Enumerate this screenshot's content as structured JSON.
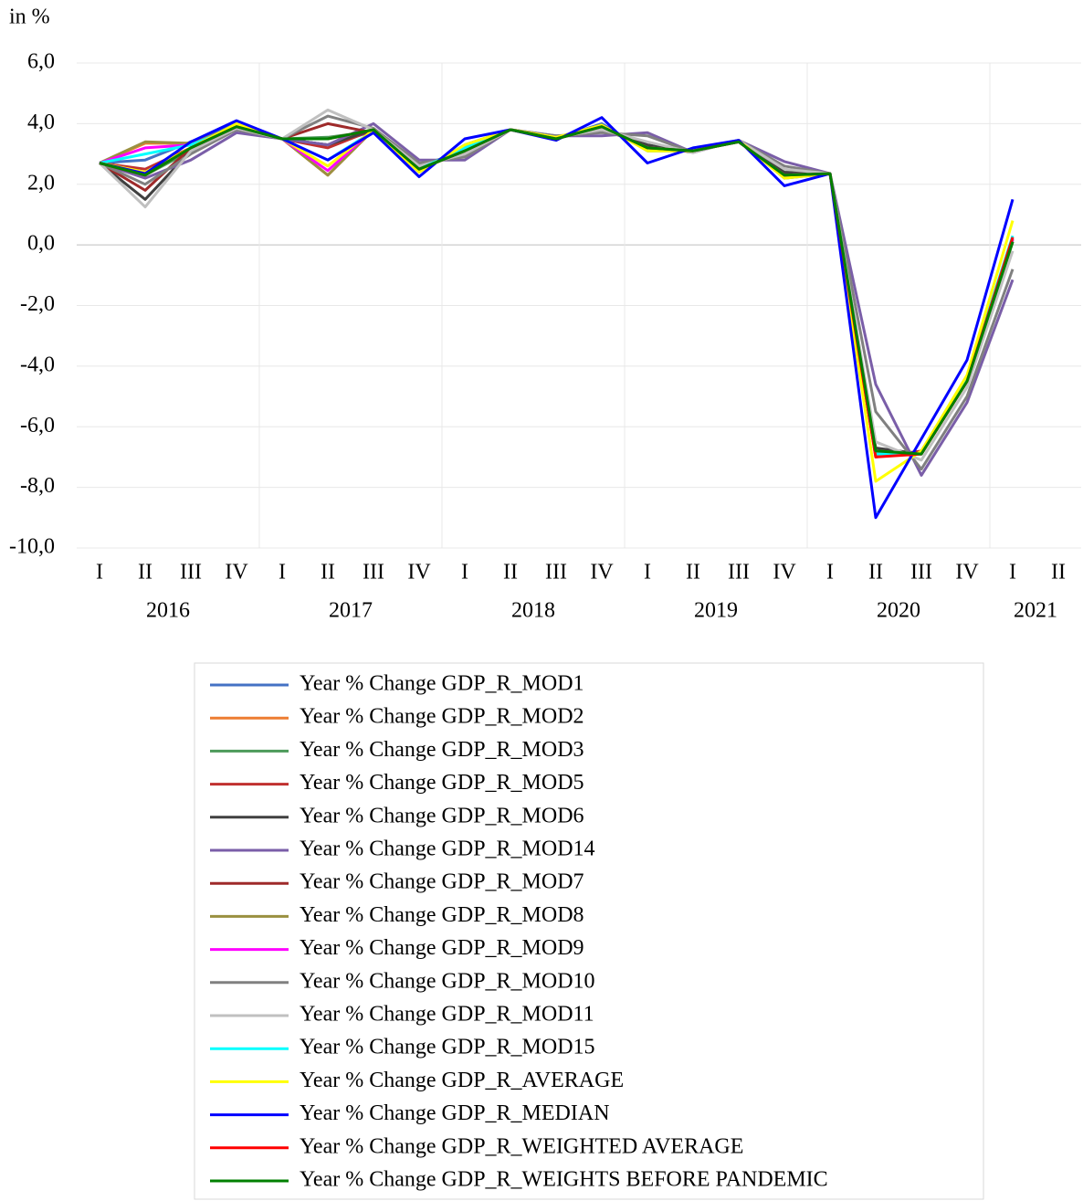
{
  "chart_data": {
    "type": "line",
    "y_axis_label": "in %",
    "categories": [
      "I",
      "II",
      "III",
      "IV",
      "I",
      "II",
      "III",
      "IV",
      "I",
      "II",
      "III",
      "IV",
      "I",
      "II",
      "III",
      "IV",
      "I",
      "II",
      "III",
      "IV",
      "I",
      "II"
    ],
    "year_labels": [
      "2016",
      "2017",
      "2018",
      "2019",
      "2020",
      "2021"
    ],
    "ylim": [
      -10,
      6
    ],
    "yticks": [
      {
        "value": -10,
        "label": "-10,0"
      },
      {
        "value": -8,
        "label": "-8,0"
      },
      {
        "value": -6,
        "label": "-6,0"
      },
      {
        "value": -4,
        "label": "-4,0"
      },
      {
        "value": -2,
        "label": "-2,0"
      },
      {
        "value": 0,
        "label": "0,0"
      },
      {
        "value": 2,
        "label": "2,0"
      },
      {
        "value": 4,
        "label": "4,0"
      },
      {
        "value": 6,
        "label": "6,0"
      }
    ],
    "grid": true,
    "series": [
      {
        "name": "Year % Change GDP_R_MOD1",
        "color": "#4472c4",
        "values": [
          2.7,
          2.8,
          3.4,
          4.0,
          3.5,
          3.3,
          3.75,
          2.4,
          3.3,
          3.8,
          3.5,
          4.0,
          3.1,
          3.1,
          3.45,
          2.2,
          2.35,
          -6.9,
          -6.9,
          -4.4,
          0.2,
          null
        ]
      },
      {
        "name": "Year % Change GDP_R_MOD2",
        "color": "#ed7d31",
        "values": [
          2.7,
          3.35,
          3.35,
          3.9,
          3.5,
          2.3,
          3.8,
          2.5,
          3.2,
          3.8,
          3.55,
          3.9,
          3.2,
          3.1,
          3.4,
          2.3,
          2.35,
          -6.8,
          -6.9,
          -4.5,
          0.2,
          null
        ]
      },
      {
        "name": "Year % Change GDP_R_MOD3",
        "color": "#4c9a5a",
        "values": [
          2.7,
          2.3,
          3.1,
          3.9,
          3.5,
          3.55,
          3.75,
          2.6,
          3.1,
          3.8,
          3.55,
          3.9,
          3.25,
          3.1,
          3.45,
          2.35,
          2.35,
          -6.8,
          -6.9,
          -4.5,
          0.15,
          null
        ]
      },
      {
        "name": "Year % Change GDP_R_MOD5",
        "color": "#c0302f",
        "values": [
          2.7,
          2.5,
          3.2,
          3.9,
          3.5,
          3.2,
          3.8,
          2.5,
          3.2,
          3.8,
          3.5,
          3.9,
          3.2,
          3.1,
          3.4,
          2.3,
          2.35,
          -7.0,
          -6.8,
          -4.4,
          0.25,
          null
        ]
      },
      {
        "name": "Year % Change GDP_R_MOD6",
        "color": "#404040",
        "values": [
          2.7,
          1.5,
          3.1,
          3.8,
          3.5,
          3.3,
          3.8,
          2.6,
          3.0,
          3.8,
          3.55,
          3.8,
          3.3,
          3.05,
          3.45,
          2.4,
          2.35,
          -6.7,
          -6.9,
          -4.5,
          0.1,
          null
        ]
      },
      {
        "name": "Year % Change GDP_R_MOD14",
        "color": "#7a5ea8",
        "values": [
          2.7,
          2.2,
          2.8,
          3.7,
          3.5,
          3.3,
          4.0,
          2.8,
          2.8,
          3.8,
          3.6,
          3.6,
          3.7,
          3.05,
          3.45,
          2.75,
          2.35,
          -4.6,
          -7.6,
          -5.2,
          -1.15,
          null
        ]
      },
      {
        "name": "Year % Change GDP_R_MOD7",
        "color": "#9e2a2a",
        "values": [
          2.7,
          1.8,
          3.2,
          3.9,
          3.5,
          4.0,
          3.7,
          2.5,
          3.1,
          3.8,
          3.5,
          3.9,
          3.2,
          3.1,
          3.4,
          2.3,
          2.35,
          -6.9,
          -6.9,
          -4.5,
          0.2,
          null
        ]
      },
      {
        "name": "Year % Change GDP_R_MOD8",
        "color": "#9a9040",
        "values": [
          2.7,
          3.4,
          3.35,
          3.9,
          3.5,
          2.3,
          3.8,
          2.5,
          3.1,
          3.8,
          3.5,
          3.9,
          3.2,
          3.1,
          3.4,
          2.3,
          2.35,
          -6.8,
          -6.9,
          -4.5,
          0.1,
          null
        ]
      },
      {
        "name": "Year % Change GDP_R_MOD9",
        "color": "#ff00ff",
        "values": [
          2.7,
          3.2,
          3.3,
          3.9,
          3.5,
          2.45,
          3.8,
          2.5,
          3.2,
          3.8,
          3.5,
          3.9,
          3.2,
          3.1,
          3.4,
          2.3,
          2.35,
          -6.9,
          -6.9,
          -4.4,
          0.2,
          null
        ]
      },
      {
        "name": "Year % Change GDP_R_MOD10",
        "color": "#808080",
        "values": [
          2.7,
          2.0,
          3.0,
          3.8,
          3.5,
          4.25,
          3.85,
          2.7,
          2.9,
          3.8,
          3.6,
          3.7,
          3.6,
          3.05,
          3.45,
          2.6,
          2.35,
          -5.5,
          -7.4,
          -5.0,
          -0.8,
          null
        ]
      },
      {
        "name": "Year % Change GDP_R_MOD11",
        "color": "#c0c0c0",
        "values": [
          2.7,
          1.25,
          3.1,
          3.85,
          3.5,
          4.45,
          3.8,
          2.6,
          3.0,
          3.8,
          3.55,
          3.8,
          3.4,
          3.05,
          3.45,
          2.5,
          2.35,
          -6.5,
          -7.1,
          -4.7,
          -0.2,
          null
        ]
      },
      {
        "name": "Year % Change GDP_R_MOD15",
        "color": "#00ffff",
        "values": [
          2.7,
          3.0,
          3.3,
          3.9,
          3.5,
          2.8,
          3.75,
          2.5,
          3.2,
          3.8,
          3.5,
          3.9,
          3.2,
          3.1,
          3.4,
          2.3,
          2.35,
          -6.9,
          -6.9,
          -4.4,
          0.3,
          null
        ]
      },
      {
        "name": "Year % Change GDP_R_AVERAGE",
        "color": "#ffff00",
        "values": [
          2.7,
          2.4,
          3.2,
          4.0,
          3.5,
          2.6,
          3.8,
          2.4,
          3.3,
          3.8,
          3.55,
          3.95,
          3.1,
          3.1,
          3.45,
          2.2,
          2.35,
          -7.8,
          -6.8,
          -4.3,
          0.8,
          null
        ]
      },
      {
        "name": "Year % Change GDP_R_MEDIAN",
        "color": "#0000ff",
        "values": [
          2.7,
          2.35,
          3.4,
          4.1,
          3.5,
          2.8,
          3.7,
          2.25,
          3.5,
          3.8,
          3.45,
          4.2,
          2.7,
          3.2,
          3.45,
          1.95,
          2.35,
          -9.0,
          -6.4,
          -3.8,
          1.5,
          null
        ]
      },
      {
        "name": "Year % Change GDP_R_WEIGHTED AVERAGE",
        "color": "#ff0000",
        "values": [
          2.7,
          2.3,
          3.2,
          3.9,
          3.5,
          3.5,
          3.8,
          2.5,
          3.1,
          3.8,
          3.5,
          3.9,
          3.2,
          3.1,
          3.4,
          2.3,
          2.35,
          -7.0,
          -6.9,
          -4.5,
          0.25,
          null
        ]
      },
      {
        "name": "Year % Change GDP_R_WEIGHTS BEFORE PANDEMIC",
        "color": "#008000",
        "values": [
          2.7,
          2.3,
          3.2,
          3.9,
          3.5,
          3.5,
          3.8,
          2.5,
          3.1,
          3.8,
          3.5,
          3.9,
          3.2,
          3.1,
          3.4,
          2.3,
          2.35,
          -6.8,
          -6.9,
          -4.5,
          0.1,
          null
        ]
      }
    ]
  }
}
